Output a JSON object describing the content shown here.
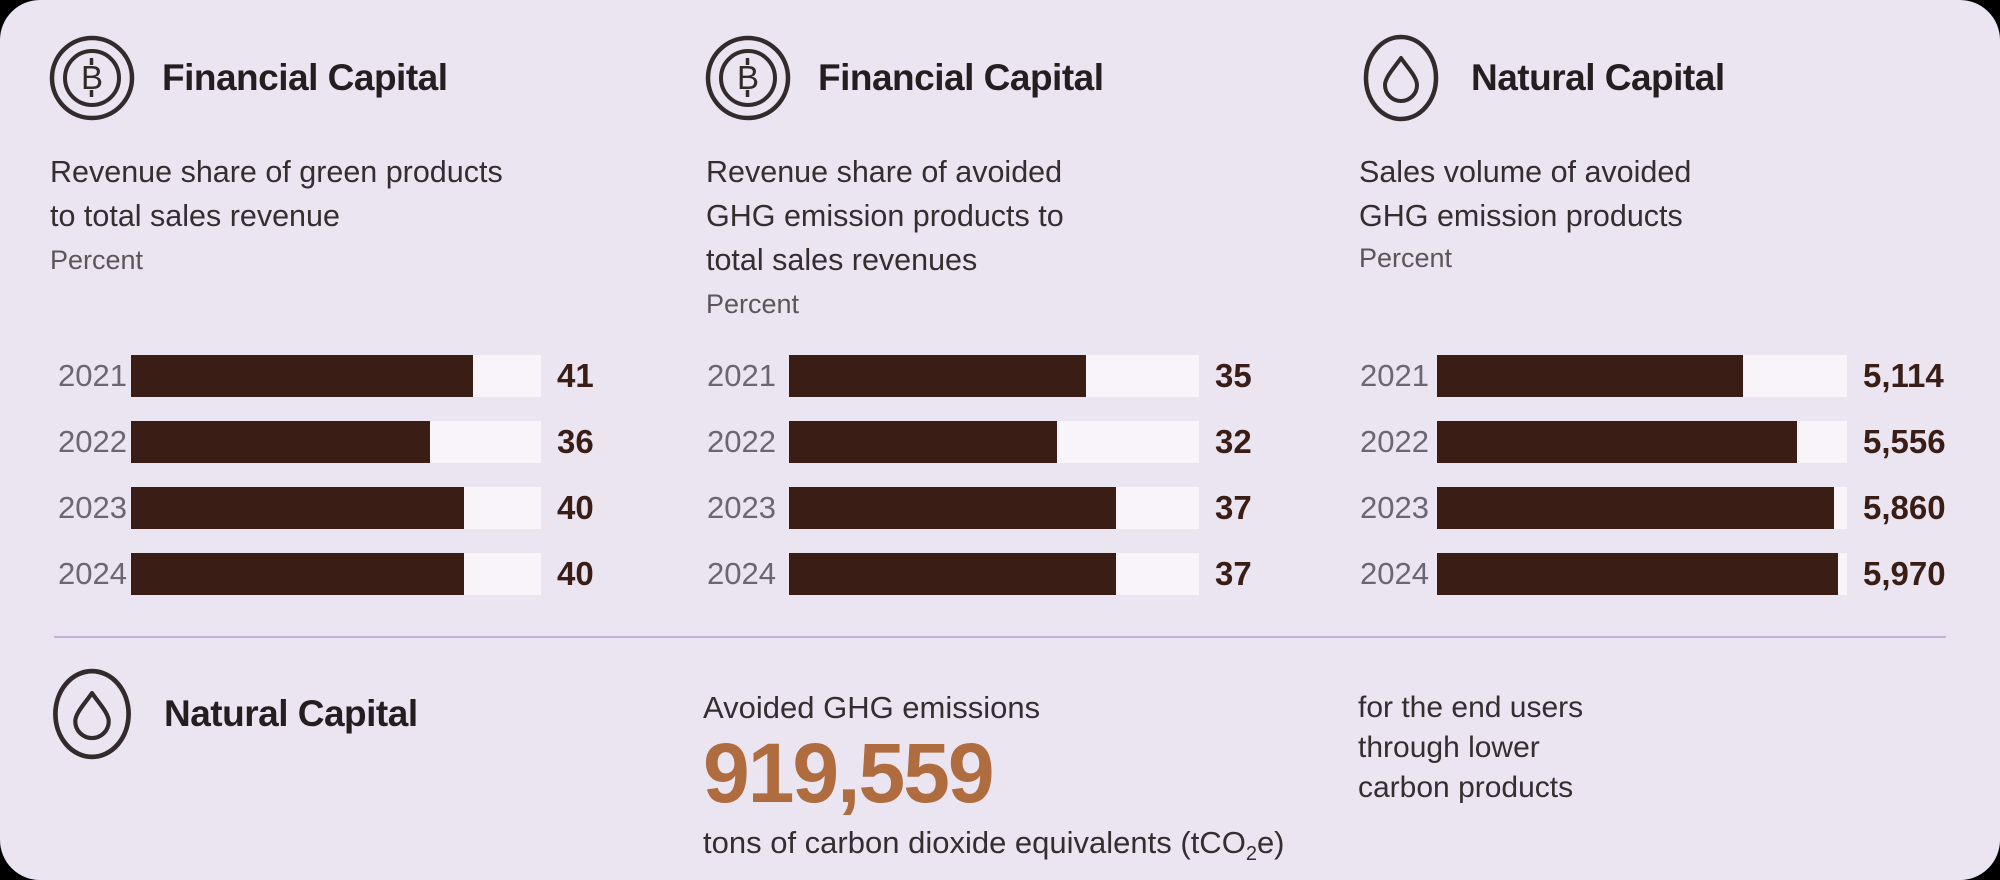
{
  "colors": {
    "card": "#EBE5F2",
    "bar": "#3A1E16",
    "track": "#F8F4FA",
    "divider": "#C4B1DD",
    "title": "#251E20",
    "text": "#352D2F",
    "muted": "#5C5659",
    "year": "#6B6671",
    "accent": "#AF6C3F",
    "icon": "#332B2B"
  },
  "panels": [
    {
      "icon": "baht-coin-icon",
      "title": "Financial Capital",
      "subtitle_lines": [
        "Revenue share of green products",
        "to total sales revenue"
      ],
      "unit": "Percent"
    },
    {
      "icon": "baht-coin-icon",
      "title": "Financial Capital",
      "subtitle_lines": [
        "Revenue share of avoided",
        "GHG emission products to",
        "total sales revenues"
      ],
      "unit": "Percent"
    },
    {
      "icon": "water-drop-icon",
      "title": "Natural Capital",
      "subtitle_lines": [
        "Sales volume of avoided",
        "GHG emission products"
      ],
      "unit": "Percent"
    }
  ],
  "chart_data": [
    {
      "type": "bar",
      "orientation": "horizontal",
      "title": "Revenue share of green products to total sales revenue",
      "ylabel": "Percent",
      "categories": [
        "2021",
        "2022",
        "2023",
        "2024"
      ],
      "values": [
        41,
        36,
        40,
        40
      ],
      "display_values": [
        "41",
        "36",
        "40",
        "40"
      ],
      "fill_pct": [
        83.4,
        72.9,
        81.2,
        81.2
      ],
      "xlim": [
        0,
        49
      ],
      "grid": false,
      "legend": "none",
      "bar_color": "#3A1E16",
      "track_color": "#F8F4FA"
    },
    {
      "type": "bar",
      "orientation": "horizontal",
      "title": "Revenue share of avoided GHG emission products to total sales revenues",
      "ylabel": "Percent",
      "categories": [
        "2021",
        "2022",
        "2023",
        "2024"
      ],
      "values": [
        35,
        32,
        37,
        37
      ],
      "display_values": [
        "35",
        "32",
        "37",
        "37"
      ],
      "fill_pct": [
        72.4,
        65.4,
        79.7,
        79.7
      ],
      "xlim": [
        0,
        49
      ],
      "grid": false,
      "legend": "none",
      "bar_color": "#3A1E16",
      "track_color": "#F8F4FA"
    },
    {
      "type": "bar",
      "orientation": "horizontal",
      "title": "Sales volume of avoided GHG emission products",
      "ylabel": "Percent",
      "categories": [
        "2021",
        "2022",
        "2023",
        "2024"
      ],
      "values": [
        5114,
        5556,
        5860,
        5970
      ],
      "display_values": [
        "5,114",
        "5,556",
        "5,860",
        "5,970"
      ],
      "fill_pct": [
        74.6,
        87.8,
        96.8,
        97.8
      ],
      "xlim": [
        0,
        6100
      ],
      "grid": false,
      "legend": "none",
      "bar_color": "#3A1E16",
      "track_color": "#F8F4FA"
    }
  ],
  "footer": {
    "left": {
      "icon": "water-drop-icon",
      "title": "Natural Capital"
    },
    "middle": {
      "label": "Avoided GHG emissions",
      "value": "919,559",
      "unit_before_sub": "tons of carbon dioxide equivalents (tCO",
      "unit_sub": "2",
      "unit_after_sub": "e)"
    },
    "right": {
      "lines": [
        "for the end users",
        "through lower",
        "carbon products"
      ]
    }
  }
}
